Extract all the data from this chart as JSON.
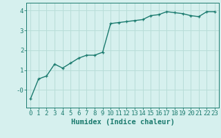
{
  "x": [
    0,
    1,
    2,
    3,
    4,
    5,
    6,
    7,
    8,
    9,
    10,
    11,
    12,
    13,
    14,
    15,
    16,
    17,
    18,
    19,
    20,
    21,
    22,
    23
  ],
  "y": [
    -0.45,
    0.55,
    0.7,
    1.3,
    1.1,
    1.35,
    1.6,
    1.75,
    1.75,
    1.9,
    3.35,
    3.4,
    3.45,
    3.5,
    3.55,
    3.75,
    3.8,
    3.95,
    3.9,
    3.85,
    3.75,
    3.7,
    3.95,
    3.95
  ],
  "line_color": "#1a7a6e",
  "marker": "+",
  "marker_size": 3,
  "background_color": "#d6f0ee",
  "grid_color": "#b8ddd8",
  "xlabel": "Humidex (Indice chaleur)",
  "xlim": [
    -0.5,
    23.5
  ],
  "ylim": [
    -0.9,
    4.4
  ],
  "yticks": [
    0,
    1,
    2,
    3,
    4
  ],
  "ytick_labels": [
    "-0",
    "1",
    "2",
    "3",
    "4"
  ],
  "xticks": [
    0,
    1,
    2,
    3,
    4,
    5,
    6,
    7,
    8,
    9,
    10,
    11,
    12,
    13,
    14,
    15,
    16,
    17,
    18,
    19,
    20,
    21,
    22,
    23
  ],
  "xlabel_fontsize": 7.5,
  "tick_fontsize": 6.5,
  "line_width": 1.0
}
